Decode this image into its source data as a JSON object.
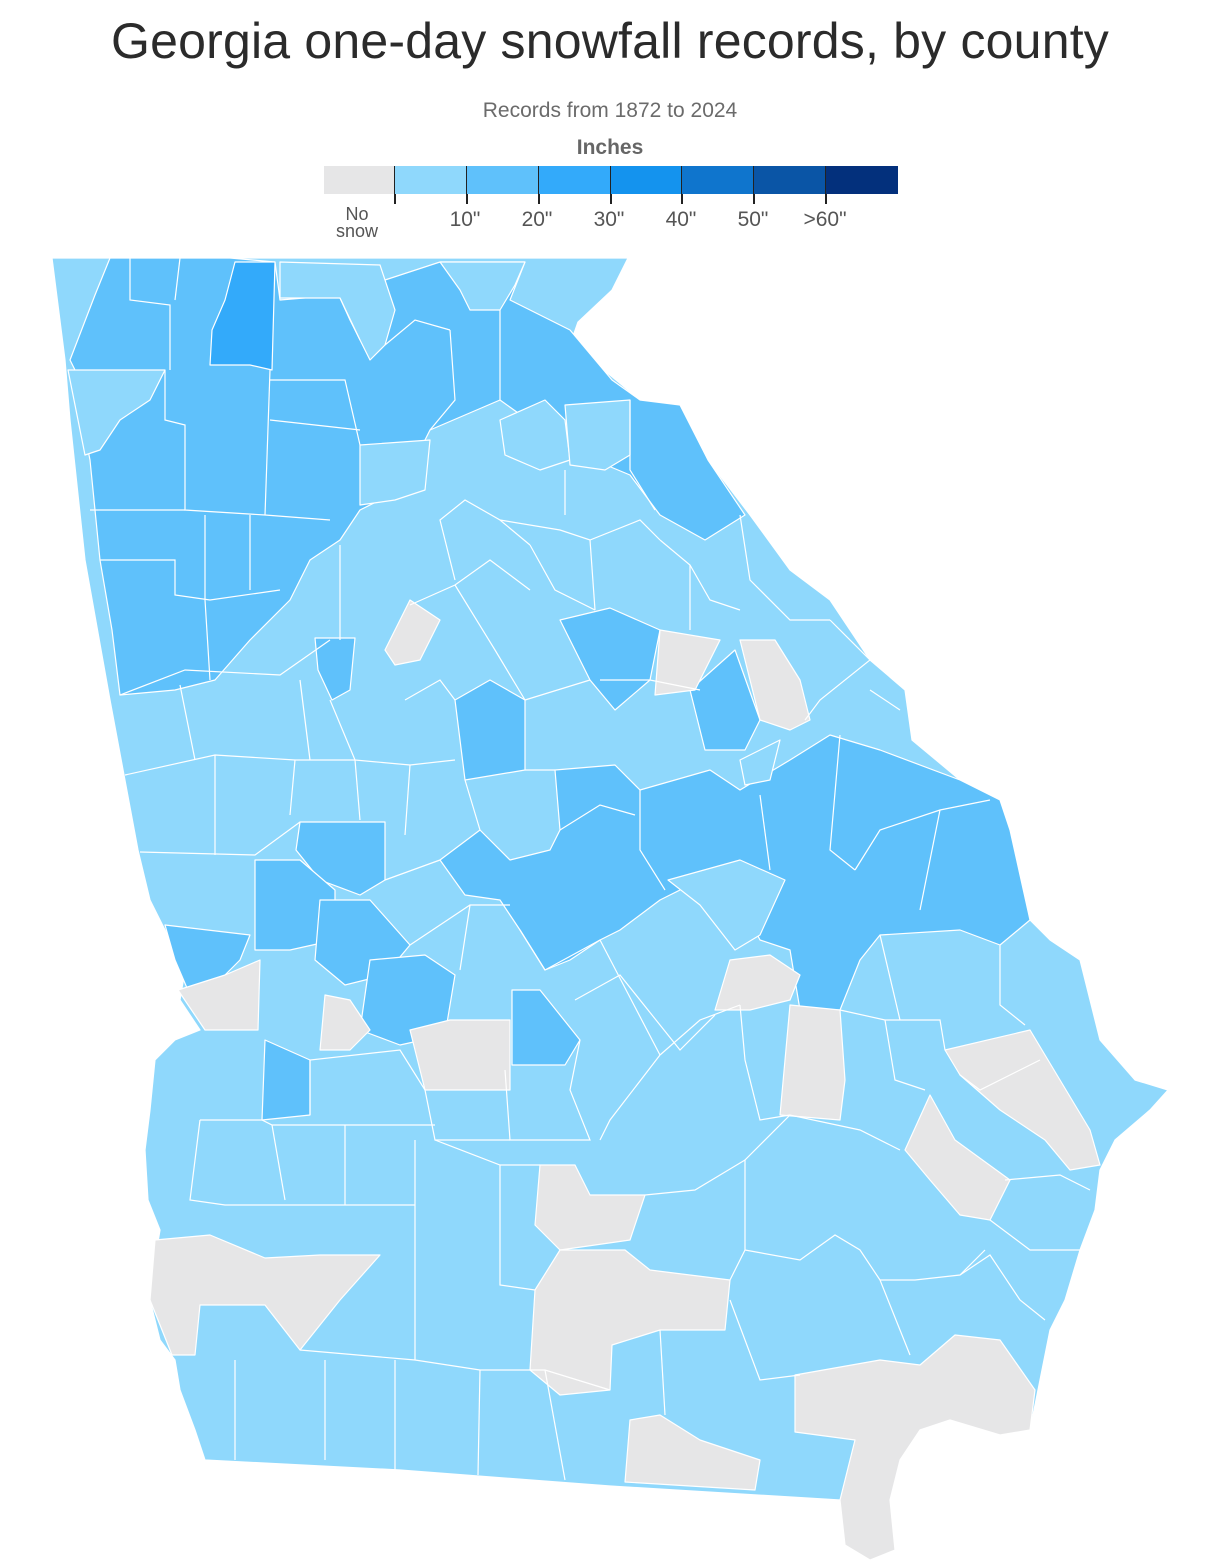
{
  "title": "Georgia one-day snowfall records, by county",
  "subtitle": "Records from 1872 to 2024",
  "legend": {
    "title": "Inches",
    "no_snow_label_line1": "No",
    "no_snow_label_line2": "snow",
    "tick_labels": [
      "10\"",
      "20\"",
      "30\"",
      "40\"",
      "50\"",
      ">60\""
    ],
    "colors": [
      "#e6e6e7",
      "#8fd8fc",
      "#5fc1fb",
      "#33aafa",
      "#1493ee",
      "#0f75cd",
      "#0a55a6",
      "#03307c"
    ]
  },
  "map_colors": {
    "no_snow": "#e6e6e7",
    "under_10": "#8fd8fc",
    "10_to_20": "#5fc1fb",
    "20_to_30": "#33aafa",
    "border": "#ffffff"
  }
}
